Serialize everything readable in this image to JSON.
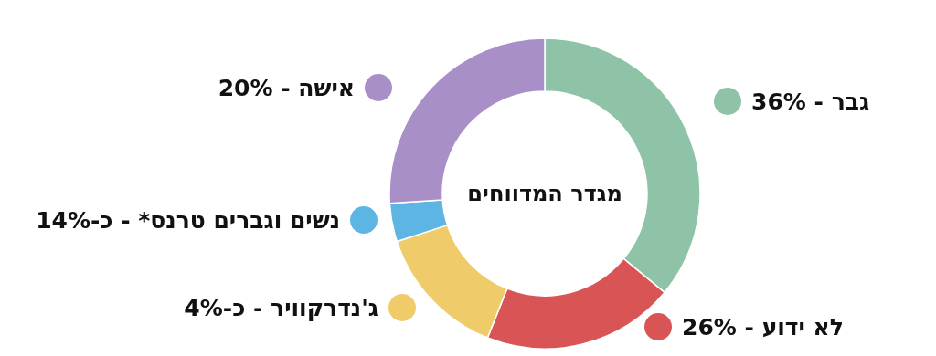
{
  "chart_data": {
    "type": "donut",
    "legend": "left",
    "title": "מגדר המדווחים",
    "categories": [
      "גבר - 36%",
      "לא ידוע - 26%",
      "ג'נדרקוויר - כ-4%",
      "נשים וגברים טרנס* - כ-14%",
      "אישה - 20%"
    ],
    "values": [
      36,
      20,
      14,
      4,
      26
    ],
    "colors": [
      "#8fc3a7",
      "#d95455",
      "#f0cb69",
      "#5cb5e3",
      "#a88fc7"
    ]
  }
}
